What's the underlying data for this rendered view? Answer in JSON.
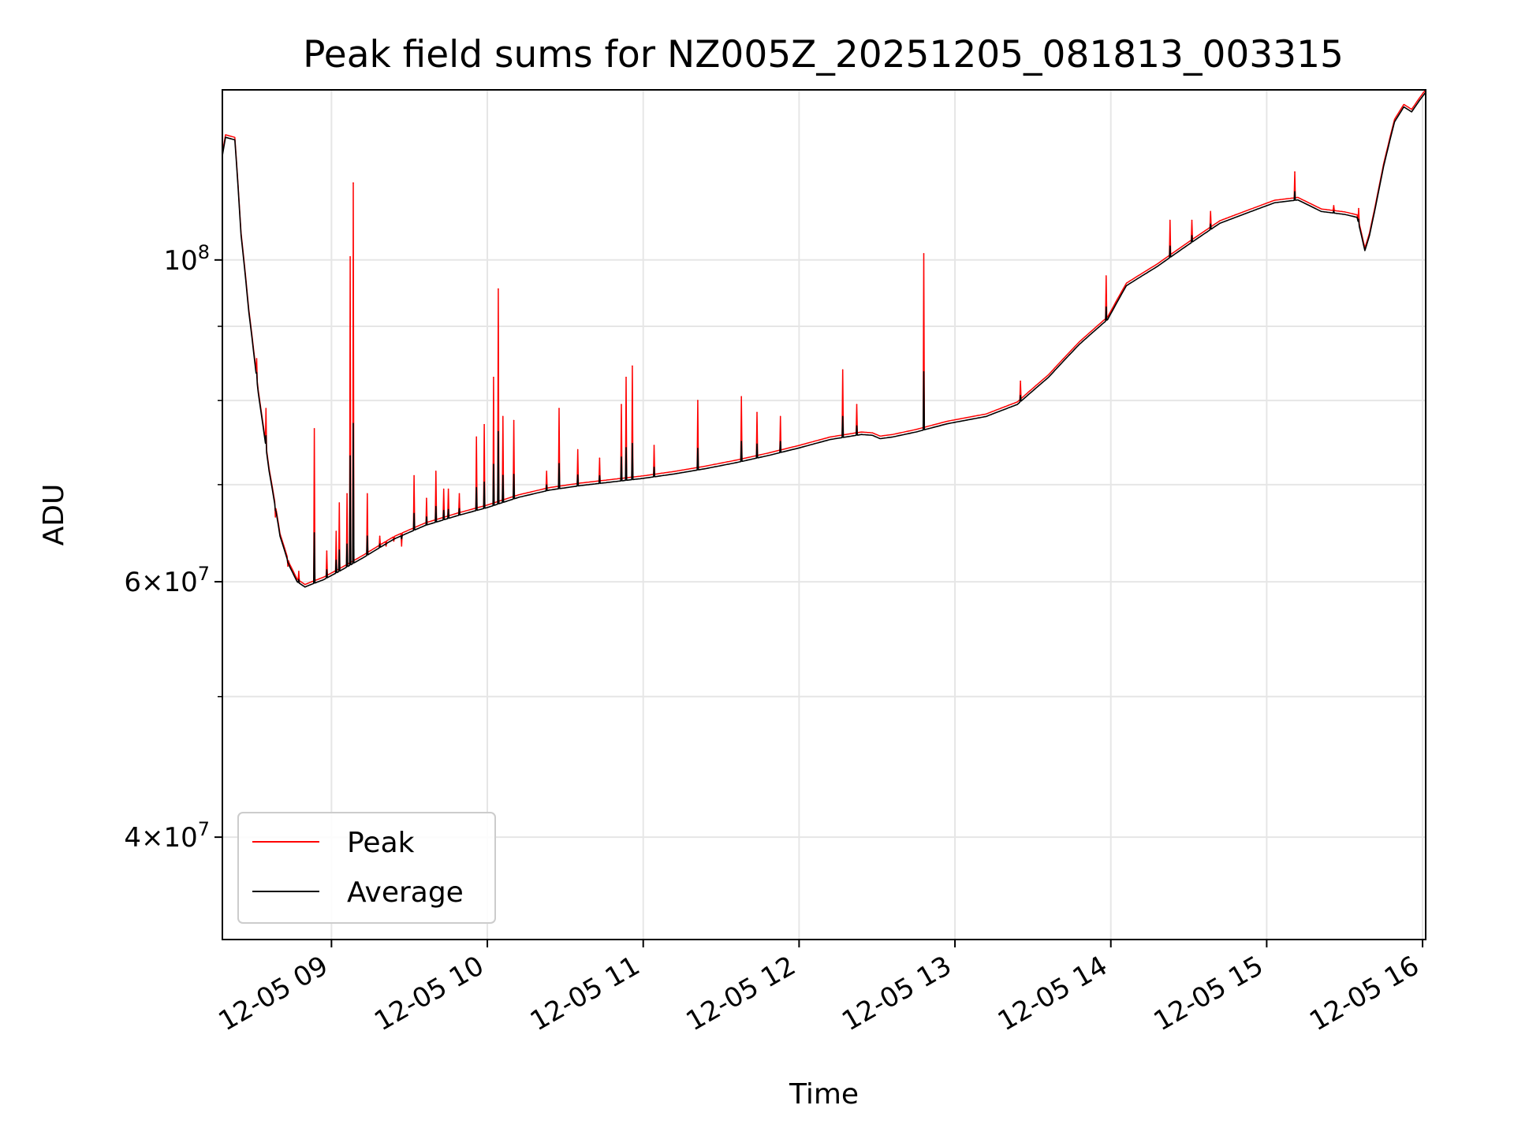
{
  "chart_data": {
    "type": "line",
    "title": "Peak field sums for NZ005Z_20251205_081813_003315",
    "xlabel": "Time",
    "ylabel": "ADU",
    "yscale": "log",
    "xlim": [
      8.3,
      16.02
    ],
    "ylim": [
      34000000,
      131000000
    ],
    "x_units": "hour of day (2025-12-05)",
    "grid": true,
    "legend_position": "lower-left",
    "x_ticks": [
      {
        "value": 9,
        "label": "12-05 09"
      },
      {
        "value": 10,
        "label": "12-05 10"
      },
      {
        "value": 11,
        "label": "12-05 11"
      },
      {
        "value": 12,
        "label": "12-05 12"
      },
      {
        "value": 13,
        "label": "12-05 13"
      },
      {
        "value": 14,
        "label": "12-05 14"
      },
      {
        "value": 15,
        "label": "12-05 15"
      },
      {
        "value": 16,
        "label": "12-05 16"
      }
    ],
    "y_ticks": [
      {
        "value": 40000000,
        "mantissa": "4",
        "exponent": "7"
      },
      {
        "value": 60000000,
        "mantissa": "6",
        "exponent": "7"
      },
      {
        "value": 100000000,
        "mantissa": "",
        "exponent": "8"
      }
    ],
    "y_minor_ticks": [
      50000000,
      70000000,
      80000000,
      90000000
    ],
    "series": [
      {
        "name": "Average",
        "color": "#000000",
        "x": [
          8.3,
          8.32,
          8.38,
          8.42,
          8.47,
          8.53,
          8.6,
          8.67,
          8.73,
          8.78,
          8.83,
          8.88,
          8.95,
          9.05,
          9.2,
          9.4,
          9.6,
          9.8,
          10.0,
          10.2,
          10.4,
          10.6,
          10.8,
          11.0,
          11.2,
          11.4,
          11.6,
          11.8,
          12.0,
          12.2,
          12.4,
          12.47,
          12.52,
          12.6,
          12.75,
          12.95,
          13.2,
          13.4,
          13.6,
          13.8,
          13.98,
          14.1,
          14.3,
          14.5,
          14.7,
          14.9,
          15.05,
          15.2,
          15.35,
          15.5,
          15.58,
          15.63,
          15.66,
          15.7,
          15.75,
          15.82,
          15.88,
          15.93,
          15.98,
          16.02
        ],
        "y": [
          118000000,
          121500000,
          121000000,
          104000000,
          92000000,
          81000000,
          71500000,
          64500000,
          61500000,
          60000000,
          59500000,
          59800000,
          60200000,
          61000000,
          62300000,
          64200000,
          65600000,
          66600000,
          67500000,
          68600000,
          69400000,
          69900000,
          70300000,
          70700000,
          71200000,
          71800000,
          72500000,
          73300000,
          74200000,
          75200000,
          75800000,
          75700000,
          75300000,
          75500000,
          76100000,
          77100000,
          78000000,
          79500000,
          83000000,
          87500000,
          91000000,
          96000000,
          99000000,
          102500000,
          106000000,
          108000000,
          109500000,
          110000000,
          108000000,
          107500000,
          107000000,
          101500000,
          104000000,
          109000000,
          116000000,
          124500000,
          127500000,
          126500000,
          128800000,
          130500000
        ]
      },
      {
        "name": "Peak",
        "color": "#ff0000",
        "spikes": [
          {
            "x": 8.52,
            "y": 85500000
          },
          {
            "x": 8.58,
            "y": 79000000
          },
          {
            "x": 8.64,
            "y": 66500000
          },
          {
            "x": 8.72,
            "y": 61500000
          },
          {
            "x": 8.79,
            "y": 61000000
          },
          {
            "x": 8.89,
            "y": 76500000
          },
          {
            "x": 8.97,
            "y": 63000000
          },
          {
            "x": 9.03,
            "y": 65000000
          },
          {
            "x": 9.05,
            "y": 68000000
          },
          {
            "x": 9.1,
            "y": 69000000
          },
          {
            "x": 9.12,
            "y": 100500000
          },
          {
            "x": 9.14,
            "y": 113000000
          },
          {
            "x": 9.23,
            "y": 69000000
          },
          {
            "x": 9.31,
            "y": 64500000
          },
          {
            "x": 9.35,
            "y": 63500000
          },
          {
            "x": 9.4,
            "y": 64000000
          },
          {
            "x": 9.45,
            "y": 63500000
          },
          {
            "x": 9.53,
            "y": 71000000
          },
          {
            "x": 9.61,
            "y": 68500000
          },
          {
            "x": 9.67,
            "y": 71500000
          },
          {
            "x": 9.72,
            "y": 69500000
          },
          {
            "x": 9.75,
            "y": 69500000
          },
          {
            "x": 9.82,
            "y": 69000000
          },
          {
            "x": 9.93,
            "y": 75500000
          },
          {
            "x": 9.98,
            "y": 77000000
          },
          {
            "x": 10.04,
            "y": 83000000
          },
          {
            "x": 10.07,
            "y": 95500000
          },
          {
            "x": 10.1,
            "y": 78000000
          },
          {
            "x": 10.17,
            "y": 77500000
          },
          {
            "x": 10.38,
            "y": 71500000
          },
          {
            "x": 10.46,
            "y": 79000000
          },
          {
            "x": 10.58,
            "y": 74000000
          },
          {
            "x": 10.72,
            "y": 73000000
          },
          {
            "x": 10.86,
            "y": 79500000
          },
          {
            "x": 10.89,
            "y": 83000000
          },
          {
            "x": 10.93,
            "y": 84500000
          },
          {
            "x": 11.07,
            "y": 74500000
          },
          {
            "x": 11.35,
            "y": 80000000
          },
          {
            "x": 11.63,
            "y": 80500000
          },
          {
            "x": 11.73,
            "y": 78500000
          },
          {
            "x": 11.88,
            "y": 78000000
          },
          {
            "x": 12.28,
            "y": 84000000
          },
          {
            "x": 12.37,
            "y": 79500000
          },
          {
            "x": 12.8,
            "y": 101000000
          },
          {
            "x": 13.42,
            "y": 82500000
          },
          {
            "x": 13.97,
            "y": 97500000
          },
          {
            "x": 14.38,
            "y": 106500000
          },
          {
            "x": 14.52,
            "y": 106500000
          },
          {
            "x": 14.64,
            "y": 108000000
          },
          {
            "x": 15.18,
            "y": 115000000
          },
          {
            "x": 15.43,
            "y": 109000000
          },
          {
            "x": 15.59,
            "y": 108500000
          }
        ]
      }
    ]
  }
}
